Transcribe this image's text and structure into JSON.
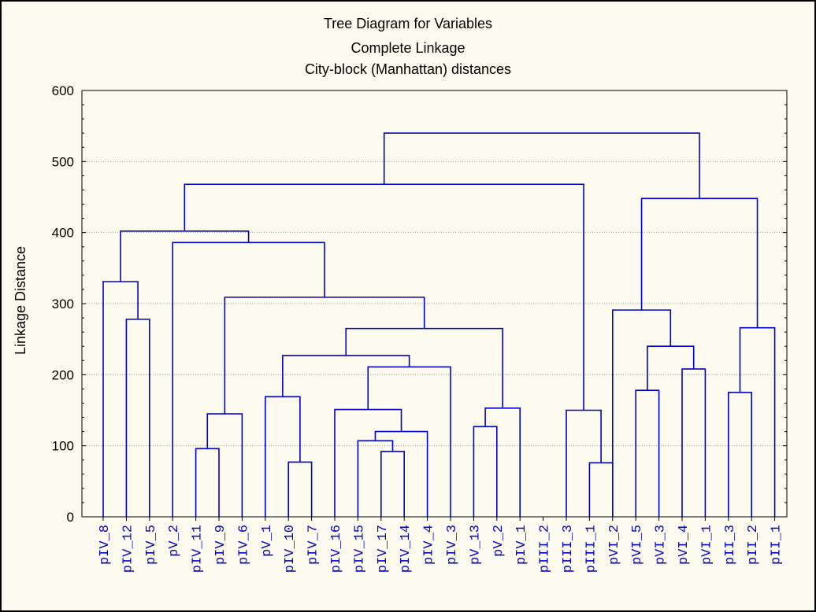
{
  "chart_data": {
    "type": "dendrogram",
    "title_lines": [
      "Tree Diagram for  Variables",
      "Complete Linkage",
      "City-block (Manhattan) distances"
    ],
    "ylabel": "Linkage Distance",
    "ylim": [
      0,
      600
    ],
    "yticks": [
      0,
      100,
      200,
      300,
      400,
      500,
      600
    ],
    "grid": true,
    "line_color": "#0000cc",
    "grid_color": "#a0a0a0",
    "leaves": [
      "pIV_8",
      "pIV_12",
      "pIV_5",
      "pV_2",
      "pIV_11",
      "pIV_9",
      "pIV_6",
      "pV_1",
      "pIV_10",
      "pIV_7",
      "pIV_16",
      "pIV_15",
      "pIV_17",
      "pIV_14",
      "pIV_4",
      "pIV_3",
      "pV_13",
      "pV_2",
      "pIV_1",
      "pIII_2",
      "pIII_3",
      "pIII_1",
      "pVI_2",
      "pVI_5",
      "pVI_3",
      "pVI_4",
      "pVI_1",
      "pII_3",
      "pII_2",
      "pII_1"
    ],
    "merges": [
      {
        "left": 9,
        "right": 10,
        "height": 77
      },
      {
        "left": 22,
        "right": 23,
        "height": 76
      },
      {
        "left": 13,
        "right": 14,
        "height": 92
      },
      {
        "left": 5,
        "right": 6,
        "height": 96
      },
      {
        "left": 12,
        "right": "m3",
        "height": 107
      },
      {
        "left": "m5",
        "right": 15,
        "height": 120
      },
      {
        "left": 17,
        "right": 18,
        "height": 127
      },
      {
        "left": 11,
        "right": "m6",
        "height": 151
      },
      {
        "left": 21,
        "right": "m2",
        "height": 150
      },
      {
        "left": "m4",
        "right": 7,
        "height": 145
      },
      {
        "left": "m7",
        "right": 19,
        "height": 153
      },
      {
        "left": 8,
        "right": "m1",
        "height": 169
      },
      {
        "left": 28,
        "right": 29,
        "height": 175
      },
      {
        "left": 24,
        "right": 25,
        "height": 178
      },
      {
        "left": 26,
        "right": 27,
        "height": 208
      },
      {
        "left": "m8",
        "right": 16,
        "height": 211
      },
      {
        "left": "m12",
        "right": "m16",
        "height": 227
      },
      {
        "left": "m14",
        "right": "m15",
        "height": 240
      },
      {
        "left": "m17",
        "right": "m11",
        "height": 265
      },
      {
        "left": "m13",
        "right": 30,
        "height": 266
      },
      {
        "left": 2,
        "right": 3,
        "height": 278
      },
      {
        "left": 23,
        "right": "m18",
        "height": 291
      },
      {
        "left": "m10",
        "right": "m19",
        "height": 309
      },
      {
        "left": 1,
        "right": "m21",
        "height": 331
      },
      {
        "left": 4,
        "right": "m23",
        "height": 386
      },
      {
        "left": "m24",
        "right": "m25",
        "height": 402
      },
      {
        "left": "m22",
        "right": "m20",
        "height": 448
      },
      {
        "left": "m26",
        "right": "m9",
        "height": 468
      },
      {
        "left": "m28",
        "right": "m27",
        "height": 540
      }
    ]
  }
}
